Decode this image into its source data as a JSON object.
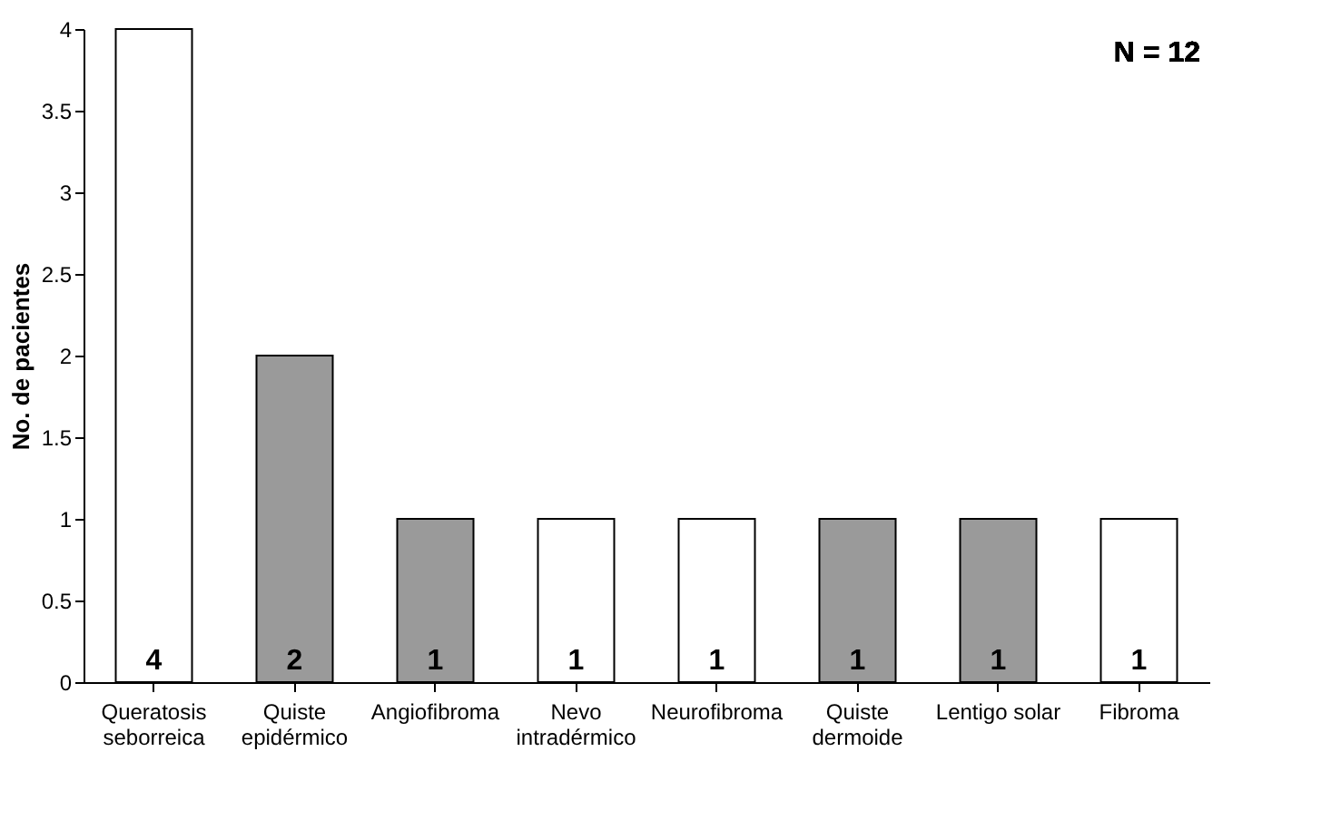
{
  "chart_data": {
    "type": "bar",
    "ylabel": "No. de pacientes",
    "annotations": [
      "N = 12"
    ],
    "categories": [
      "Queratosis\nseborreica",
      "Quiste\nepidérmico",
      "Angiofibroma",
      "Nevo\nintradérmico",
      "Neurofibroma",
      "Quiste\ndermoide",
      "Lentigo solar",
      "Fibroma"
    ],
    "values": [
      4,
      2,
      1,
      1,
      1,
      1,
      1,
      1
    ],
    "colors": [
      "#ffffff",
      "#9a9a9a",
      "#9a9a9a",
      "#ffffff",
      "#ffffff",
      "#9a9a9a",
      "#9a9a9a",
      "#ffffff"
    ],
    "ylim": [
      0,
      4
    ],
    "yticks": [
      0,
      0.5,
      1,
      1.5,
      2,
      2.5,
      3,
      3.5,
      4
    ],
    "data_labels": true,
    "grid": false
  }
}
